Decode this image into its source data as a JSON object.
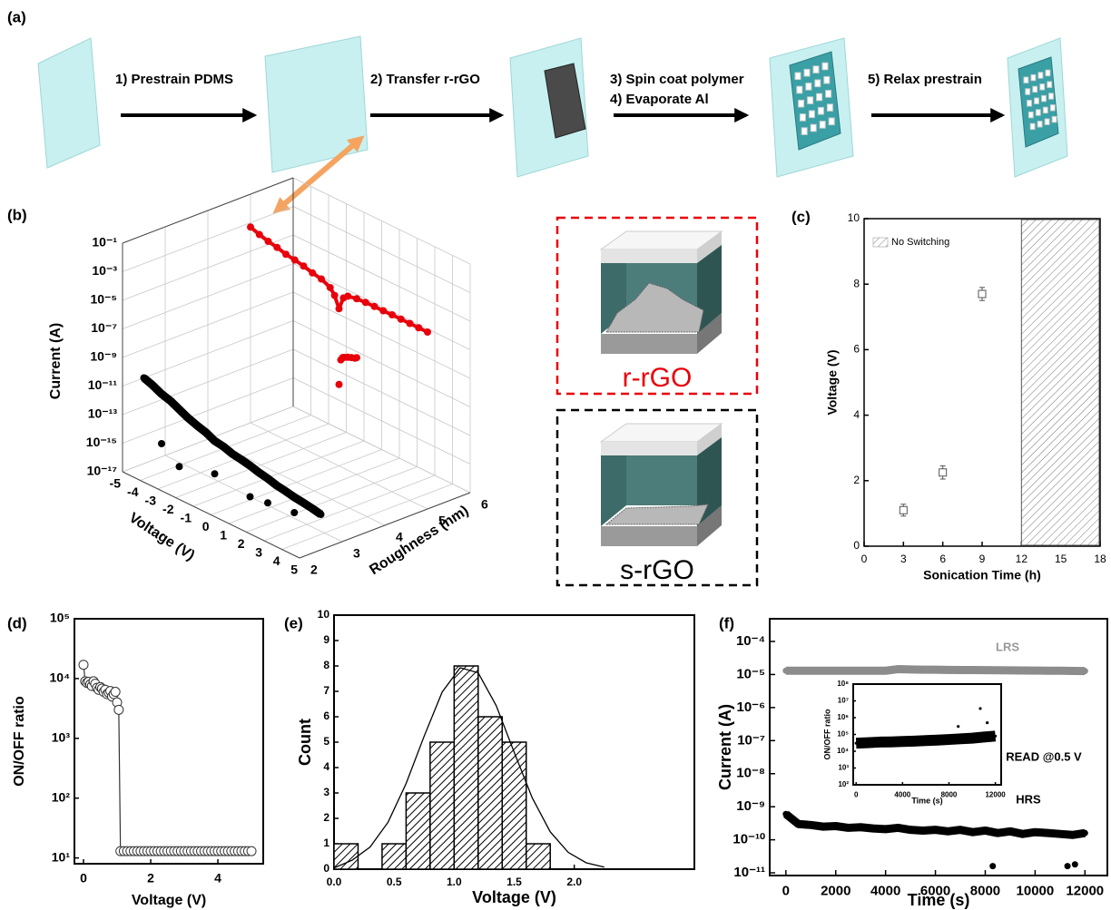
{
  "panel_labels": [
    "(a)",
    "(b)",
    "(c)",
    "(d)",
    "(e)",
    "(f)"
  ],
  "schematic": {
    "steps": [
      "1)  Prestrain PDMS",
      "2) Transfer r-rGO",
      "3) Spin coat polymer",
      "4) Evaporate Al",
      "5) Relax prestrain"
    ],
    "devices": [
      "r-rGO",
      "s-rGO"
    ]
  },
  "chart_data": [
    {
      "type": "scatter3d",
      "xlabel": "Voltage (V)",
      "ylabel": "Current (A)",
      "zlabel": "Roughness (nm)",
      "log_y": true,
      "grid": true,
      "xlim": [
        -5,
        5
      ],
      "xticks": [
        -5,
        -4,
        -3,
        -2,
        -1,
        0,
        1,
        2,
        3,
        4,
        5
      ],
      "ylim": [
        1e-17,
        0.1
      ],
      "yticks": [
        {
          "value": 0.1,
          "label": "10⁻¹"
        },
        {
          "value": 0.001,
          "label": "10⁻³"
        },
        {
          "value": 1e-05,
          "label": "10⁻⁵"
        },
        {
          "value": 1e-07,
          "label": "10⁻⁷"
        },
        {
          "value": 1e-09,
          "label": "10⁻⁹"
        },
        {
          "value": 1e-11,
          "label": "10⁻¹¹"
        },
        {
          "value": 1e-13,
          "label": "10⁻¹³"
        },
        {
          "value": 1e-15,
          "label": "10⁻¹⁵"
        },
        {
          "value": 1e-17,
          "label": "10⁻¹⁷"
        }
      ],
      "zlim": [
        2,
        6
      ],
      "zticks": [
        2,
        3,
        4,
        5,
        6
      ],
      "series": [
        {
          "color": "#e8000b",
          "z": 5,
          "x": [
            -5,
            -4.5,
            -4,
            -3.5,
            -3,
            -2.5,
            -2,
            -1.5,
            -1,
            -0.5,
            -0.25,
            0,
            0.25,
            0.5,
            1,
            1.5,
            2,
            2.5,
            3,
            3.5,
            4,
            4.5,
            5
          ],
          "values": [
            0.0005,
            0.0003,
            0.0002,
            0.00015,
            0.0001,
            8e-05,
            6e-05,
            4e-05,
            3e-05,
            1.5e-05,
            6e-06,
            1e-06,
            8e-06,
            1.5e-05,
            2e-05,
            2.2e-05,
            2.3e-05,
            2.3e-05,
            2.4e-05,
            2.4e-05,
            2.4e-05,
            2.4e-05,
            2.4e-05
          ]
        },
        {
          "color": "#e8000b",
          "z": 5,
          "x": [
            0,
            0.1,
            0.2,
            0.3,
            0.5,
            0.7,
            0.9,
            1
          ],
          "values": [
            5e-12,
            3e-10,
            5e-10,
            6e-10,
            8e-10,
            1e-09,
            1.2e-09,
            1.5e-09
          ]
        },
        {
          "color": "#000000",
          "z": 2.5,
          "x": [
            -5,
            -4.5,
            -4,
            -3.5,
            -3,
            -2.5,
            -2,
            -1.5,
            -1,
            -0.5,
            0,
            0.5,
            1,
            1.5,
            2,
            2.5,
            3,
            3.5,
            4,
            4.5,
            5
          ],
          "values": [
            1e-11,
            6e-12,
            3e-12,
            2e-12,
            1e-12,
            5e-13,
            3e-13,
            2e-13,
            1e-13,
            8e-14,
            5e-14,
            4e-14,
            3e-14,
            2e-14,
            1.5e-14,
            1e-14,
            8e-15,
            6e-15,
            5e-15,
            4e-15,
            3e-15
          ]
        },
        {
          "color": "#000000",
          "z": 2.5,
          "x": [
            -4,
            -3,
            -1,
            1,
            2,
            3.5
          ],
          "values": [
            1e-15,
            1e-16,
            5e-16,
            2e-16,
            3e-16,
            5e-16
          ]
        }
      ]
    },
    {
      "type": "scatter",
      "xlabel": "Sonication Time (h)",
      "ylabel": "Voltage (V)",
      "marker": "square",
      "xlim": [
        0,
        18
      ],
      "xticks": [
        0,
        3,
        6,
        9,
        12,
        15,
        18
      ],
      "ylim": [
        0,
        10
      ],
      "yticks": [
        0,
        2,
        4,
        6,
        8,
        10
      ],
      "shaded_region": {
        "x": [
          12,
          18
        ],
        "label": "No Switching"
      },
      "series": [
        {
          "color": "#555555",
          "x": [
            3,
            6,
            9
          ],
          "values": [
            1.1,
            2.25,
            7.7
          ],
          "errors": [
            0.18,
            0.2,
            0.2
          ]
        }
      ]
    },
    {
      "type": "line",
      "xlabel": "Voltage (V)",
      "ylabel": "ON/OFF ratio",
      "log_y": true,
      "xlim": [
        -0.27,
        5.35
      ],
      "xticks": [
        0,
        2,
        4
      ],
      "ylim": [
        8,
        100000
      ],
      "yticks": [
        {
          "value": 10,
          "label": "10¹"
        },
        {
          "value": 100,
          "label": "10²"
        },
        {
          "value": 1000,
          "label": "10³"
        },
        {
          "value": 10000,
          "label": "10⁴"
        },
        {
          "value": 100000,
          "label": "10⁵"
        }
      ],
      "series": [
        {
          "color": "#333333",
          "x": [
            0,
            0.05,
            0.1,
            0.15,
            0.2,
            0.25,
            0.3,
            0.35,
            0.4,
            0.45,
            0.5,
            0.55,
            0.6,
            0.65,
            0.7,
            0.75,
            0.8,
            0.85,
            0.9,
            0.95,
            1,
            1.05,
            1.1,
            1.2,
            1.3,
            1.4,
            1.5,
            1.6,
            1.7,
            1.8,
            1.9,
            2,
            2.1,
            2.2,
            2.3,
            2.4,
            2.5,
            2.6,
            2.7,
            2.8,
            2.9,
            3,
            3.1,
            3.2,
            3.3,
            3.4,
            3.5,
            3.6,
            3.7,
            3.8,
            3.9,
            4,
            4.1,
            4.2,
            4.3,
            4.4,
            4.5,
            4.6,
            4.7,
            4.8,
            4.9,
            5
          ],
          "values": [
            17000,
            9000,
            8500,
            8800,
            8000,
            7500,
            9000,
            8200,
            7000,
            6500,
            7200,
            6800,
            6000,
            6500,
            5500,
            5800,
            6200,
            5000,
            5500,
            6000,
            4000,
            3000,
            13,
            13,
            13,
            13,
            13,
            13,
            13,
            13,
            13,
            13,
            13,
            13,
            13,
            13,
            13,
            13,
            13,
            13,
            13,
            13,
            13,
            13,
            13,
            13,
            13,
            13,
            13,
            13,
            13,
            13,
            13,
            13,
            13,
            13,
            13,
            13,
            13,
            13,
            13,
            13
          ]
        }
      ]
    },
    {
      "type": "histogram",
      "xlabel": "Voltage (V)",
      "ylabel": "Count",
      "bins": [
        0,
        0.2,
        0.4,
        0.6,
        0.8,
        1,
        1.2,
        1.4,
        1.6,
        1.8
      ],
      "values": [
        1,
        0,
        1,
        3,
        5,
        8,
        6,
        5,
        1
      ],
      "fit": {
        "x": [
          0,
          0.15,
          0.3,
          0.45,
          0.6,
          0.75,
          0.9,
          1.05,
          1.2,
          1.35,
          1.5,
          1.65,
          1.8,
          1.95,
          2.1,
          2.25
        ],
        "values": [
          0.05,
          0.35,
          0.87,
          1.85,
          3.37,
          5.23,
          6.97,
          7.93,
          7.73,
          6.44,
          4.6,
          2.81,
          1.47,
          0.66,
          0.25,
          0.08
        ]
      },
      "xlim": [
        0,
        3
      ],
      "xticks": [
        {
          "value": 0,
          "label": "0.0"
        },
        0.5,
        {
          "value": 1,
          "label": "1.0"
        },
        1.5,
        {
          "value": 2,
          "label": "2.0"
        }
      ],
      "ylim": [
        0,
        10
      ],
      "yticks": [
        0,
        1,
        2,
        3,
        4,
        5,
        6,
        7,
        8,
        9,
        10
      ]
    },
    {
      "type": "scatter",
      "xlabel": "Time (s)",
      "ylabel": "Current (A)",
      "log_y": true,
      "xlim": [
        -650,
        12900
      ],
      "xticks": [
        0,
        2000,
        4000,
        6000,
        8000,
        10000,
        12000
      ],
      "ylim": [
        8.3e-12,
        0.000485
      ],
      "yticks": [
        {
          "value": 0.0001,
          "label": "10⁻⁴"
        },
        {
          "value": 1e-05,
          "label": "10⁻⁵"
        },
        {
          "value": 1e-06,
          "label": "10⁻⁶"
        },
        {
          "value": 1e-07,
          "label": "10⁻⁷"
        },
        {
          "value": 1e-08,
          "label": "10⁻⁸"
        },
        {
          "value": 1e-09,
          "label": "10⁻⁹"
        },
        {
          "value": 1e-10,
          "label": "10⁻¹⁰"
        },
        {
          "value": 1e-11,
          "label": "10⁻¹¹"
        }
      ],
      "annotations": [
        "READ @0.5 V"
      ],
      "series": [
        {
          "name": "LRS",
          "color": "#8c8c8c",
          "x": [
            0,
            500,
            1000,
            1500,
            2000,
            2500,
            3000,
            3500,
            4000,
            4500,
            5000,
            5500,
            6000,
            6500,
            7000,
            7500,
            8000,
            8500,
            9000,
            9500,
            10000,
            10500,
            11000,
            11500,
            12000
          ],
          "values": [
            1.3e-05,
            1.3e-05,
            1.3e-05,
            1.3e-05,
            1.3e-05,
            1.3e-05,
            1.3e-05,
            1.3e-05,
            1.3e-05,
            1.45e-05,
            1.42e-05,
            1.4e-05,
            1.4e-05,
            1.38e-05,
            1.37e-05,
            1.36e-05,
            1.35e-05,
            1.34e-05,
            1.33e-05,
            1.32e-05,
            1.31e-05,
            1.3e-05,
            1.3e-05,
            1.28e-05,
            1.27e-05
          ]
        },
        {
          "name": "HRS",
          "color": "#000000",
          "x": [
            0,
            500,
            1000,
            1500,
            2000,
            2500,
            3000,
            3500,
            4000,
            4500,
            5000,
            5500,
            6000,
            6500,
            7000,
            7500,
            8000,
            8500,
            9000,
            9500,
            10000,
            10500,
            11000,
            11500,
            12000
          ],
          "values": [
            6e-10,
            3e-10,
            2.8e-10,
            2.5e-10,
            2.6e-10,
            2.3e-10,
            2.4e-10,
            2.2e-10,
            2.1e-10,
            2.3e-10,
            2e-10,
            1.9e-10,
            2e-10,
            1.8e-10,
            2e-10,
            1.7e-10,
            1.9e-10,
            1.6e-10,
            1.8e-10,
            1.5e-10,
            1.7e-10,
            1.6e-10,
            1.5e-10,
            1.4e-10,
            1.6e-10
          ]
        },
        {
          "color": "#000000",
          "x": [
            8300,
            11300,
            11600
          ],
          "values": [
            1.6e-11,
            1.6e-11,
            1.8e-11
          ]
        }
      ]
    },
    {
      "type": "scatter",
      "xlabel": "Time (s)",
      "ylabel": "ON/OFF ratio",
      "log_y": true,
      "xlim": [
        -250,
        12500
      ],
      "xticks": [
        0,
        4000,
        8000,
        12000
      ],
      "ylim": [
        100,
        100000000
      ],
      "yticks": [
        {
          "value": 100,
          "label": "10²"
        },
        {
          "value": 1000,
          "label": "10³"
        },
        {
          "value": 10000,
          "label": "10⁴"
        },
        {
          "value": 100000,
          "label": "10⁵"
        },
        {
          "value": 1000000,
          "label": "10⁶"
        },
        {
          "value": 10000000,
          "label": "10⁷"
        },
        {
          "value": 100000000,
          "label": "10⁸"
        }
      ],
      "series": [
        {
          "color": "#000000",
          "x": [
            0,
            1000,
            2000,
            3000,
            4000,
            5000,
            6000,
            7000,
            8000,
            9000,
            10000,
            11000,
            12000
          ],
          "values": [
            30000,
            32000,
            35000,
            36000,
            38000,
            40000,
            43000,
            46000,
            50000,
            55000,
            60000,
            70000,
            80000
          ]
        },
        {
          "color": "#000000",
          "x": [
            8800,
            10700,
            11300
          ],
          "values": [
            300000,
            3500000,
            500000
          ]
        }
      ]
    }
  ]
}
